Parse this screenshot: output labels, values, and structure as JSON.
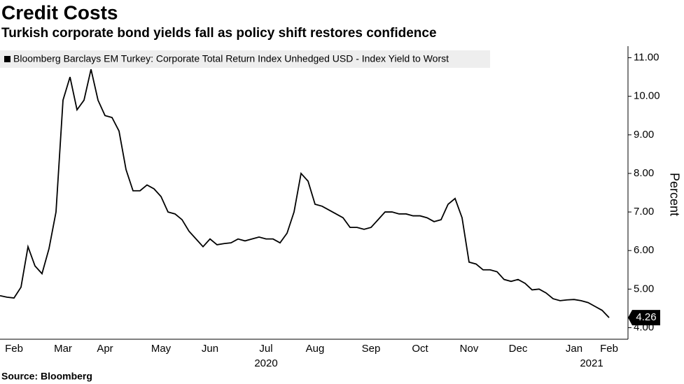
{
  "chart_data": {
    "type": "line",
    "title": "Credit Costs",
    "subtitle": "Turkish corporate bond yields fall as policy shift restores confidence",
    "y_label": "Percent",
    "source": "Source: Bloomberg",
    "years": [
      "2020",
      "2021"
    ],
    "categories": [
      null,
      null,
      "Feb",
      null,
      null,
      null,
      null,
      null,
      null,
      "Mar",
      null,
      null,
      null,
      null,
      null,
      "Apr",
      null,
      null,
      null,
      null,
      null,
      null,
      null,
      "May",
      null,
      null,
      null,
      null,
      null,
      null,
      "Jun",
      null,
      null,
      null,
      null,
      null,
      null,
      null,
      "Jul",
      null,
      null,
      null,
      null,
      null,
      null,
      "Aug",
      null,
      null,
      null,
      null,
      null,
      null,
      null,
      "Sep",
      null,
      null,
      null,
      null,
      null,
      null,
      "Oct",
      null,
      null,
      null,
      null,
      null,
      null,
      "Nov",
      null,
      null,
      null,
      null,
      null,
      null,
      "Dec",
      null,
      null,
      null,
      null,
      null,
      null,
      null,
      "Jan",
      null,
      null,
      null,
      null,
      "Feb"
    ],
    "series": [
      {
        "name": "Bloomberg Barclays EM Turkey: Corporate Total Return Index Unhedged USD - Index Yield to Worst",
        "color": "#000000",
        "values": [
          4.83,
          4.79,
          4.77,
          5.05,
          6.1,
          5.6,
          5.4,
          6.05,
          7.0,
          9.9,
          10.5,
          9.65,
          9.9,
          10.7,
          9.9,
          9.5,
          9.45,
          9.1,
          8.1,
          7.55,
          7.55,
          7.7,
          7.6,
          7.4,
          7.0,
          6.95,
          6.8,
          6.5,
          6.3,
          6.1,
          6.3,
          6.15,
          6.18,
          6.2,
          6.3,
          6.25,
          6.3,
          6.35,
          6.3,
          6.3,
          6.2,
          6.45,
          7.0,
          8.0,
          7.8,
          7.2,
          7.15,
          7.05,
          6.95,
          6.85,
          6.6,
          6.6,
          6.55,
          6.6,
          6.8,
          7.0,
          7.0,
          6.95,
          6.95,
          6.9,
          6.9,
          6.85,
          6.75,
          6.8,
          7.2,
          7.35,
          6.85,
          5.7,
          5.65,
          5.5,
          5.5,
          5.45,
          5.25,
          5.2,
          5.25,
          5.15,
          4.98,
          5.0,
          4.9,
          4.75,
          4.7,
          4.72,
          4.73,
          4.7,
          4.65,
          4.55,
          4.45,
          4.26
        ]
      }
    ],
    "ylim": [
      3.7,
      11.3
    ],
    "yticks": [
      {
        "value": 4,
        "label": "4.00"
      },
      {
        "value": 5,
        "label": "5.00"
      },
      {
        "value": 6,
        "label": "6.00"
      },
      {
        "value": 7,
        "label": "7.00"
      },
      {
        "value": 8,
        "label": "8.00"
      },
      {
        "value": 9,
        "label": "9.00"
      },
      {
        "value": 10,
        "label": "10.00"
      },
      {
        "value": 11,
        "label": "11.00"
      }
    ],
    "grid": false
  }
}
